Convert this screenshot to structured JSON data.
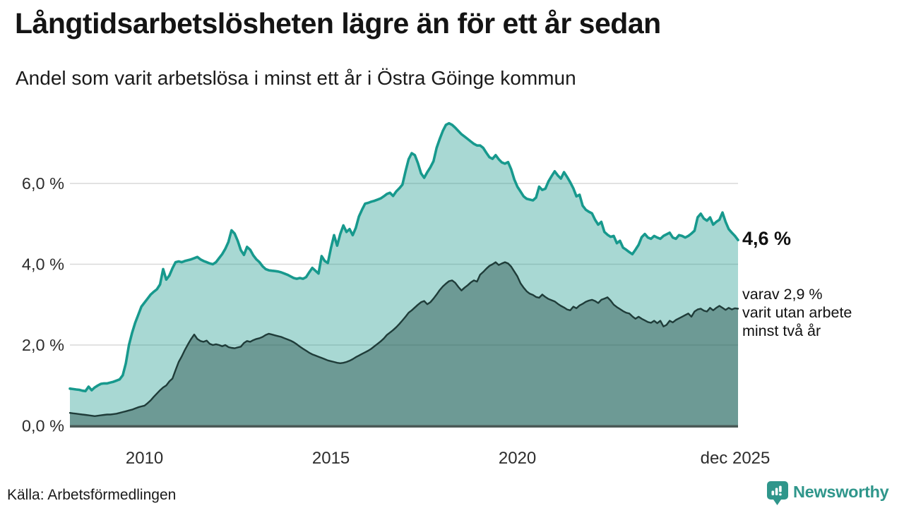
{
  "header": {
    "title": "Långtidsarbetslösheten lägre än för ett år sedan",
    "subtitle": "Andel som varit arbetslösa i minst ett år i Östra Göinge kommun"
  },
  "annotations": {
    "total": "4,6 %",
    "secondary": "varav 2,9 %\nvarit utan arbete\nminst två år"
  },
  "footer": {
    "source": "Källa: Arbetsförmedlingen",
    "logo_text": "Newsworthy"
  },
  "colors": {
    "accent_teal": "#17998d",
    "dark_line": "#1f3c39",
    "light_fill": "rgba(25,153,140,0.38)",
    "dark_fill": "rgba(38,80,74,0.45)",
    "grid": "#d9d9d9",
    "axis": "#4b5a57",
    "tick_text": "#2d2d2d",
    "logo_teal": "#2f968b"
  },
  "chart_data": {
    "type": "area",
    "title": "Långtidsarbetslösheten lägre än för ett år sedan",
    "xlabel": "",
    "ylabel": "",
    "x_unit": "month",
    "x_range": [
      "2008-01",
      "2025-12"
    ],
    "ylim": [
      0,
      7.8
    ],
    "grid": "horizontal",
    "legend_position": "right-annotations",
    "y_ticks": [
      {
        "value": 0,
        "label": "0,0 %",
        "gridline": false
      },
      {
        "value": 2,
        "label": "2,0 %",
        "gridline": true
      },
      {
        "value": 4,
        "label": "4,0 %",
        "gridline": true
      },
      {
        "value": 6,
        "label": "6,0 %",
        "gridline": true
      }
    ],
    "x_ticks": [
      {
        "index": 24,
        "label": "2010"
      },
      {
        "index": 84,
        "label": "2015"
      },
      {
        "index": 144,
        "label": "2020"
      },
      {
        "index": 215,
        "label": "dec 2025"
      }
    ],
    "series": [
      {
        "name": "Andel arbetslösa minst ett år",
        "end_label": "4,6 %",
        "end_value": 4.6,
        "line_color": "#17998d",
        "fill_color": "rgba(25,153,140,0.38)",
        "line_width": 3.6,
        "values": [
          0.92,
          0.91,
          0.9,
          0.89,
          0.87,
          0.86,
          0.97,
          0.88,
          0.95,
          1.0,
          1.04,
          1.05,
          1.05,
          1.07,
          1.09,
          1.12,
          1.15,
          1.25,
          1.55,
          2.0,
          2.3,
          2.55,
          2.75,
          2.95,
          3.05,
          3.15,
          3.25,
          3.32,
          3.38,
          3.5,
          3.88,
          3.62,
          3.72,
          3.9,
          4.05,
          4.07,
          4.05,
          4.08,
          4.1,
          4.12,
          4.15,
          4.18,
          4.12,
          4.08,
          4.05,
          4.02,
          4.0,
          4.05,
          4.15,
          4.25,
          4.38,
          4.55,
          4.84,
          4.76,
          4.58,
          4.35,
          4.23,
          4.43,
          4.36,
          4.22,
          4.12,
          4.05,
          3.95,
          3.88,
          3.85,
          3.84,
          3.83,
          3.82,
          3.8,
          3.77,
          3.74,
          3.7,
          3.66,
          3.64,
          3.66,
          3.64,
          3.68,
          3.8,
          3.91,
          3.84,
          3.77,
          4.2,
          4.08,
          4.03,
          4.4,
          4.72,
          4.46,
          4.75,
          4.96,
          4.8,
          4.87,
          4.72,
          4.9,
          5.18,
          5.35,
          5.5,
          5.52,
          5.55,
          5.57,
          5.6,
          5.63,
          5.68,
          5.74,
          5.77,
          5.69,
          5.8,
          5.88,
          5.97,
          6.3,
          6.6,
          6.75,
          6.7,
          6.5,
          6.25,
          6.14,
          6.28,
          6.4,
          6.55,
          6.88,
          7.1,
          7.3,
          7.45,
          7.49,
          7.45,
          7.38,
          7.3,
          7.22,
          7.16,
          7.1,
          7.04,
          6.98,
          6.94,
          6.94,
          6.88,
          6.76,
          6.65,
          6.61,
          6.7,
          6.6,
          6.52,
          6.49,
          6.53,
          6.35,
          6.1,
          5.92,
          5.8,
          5.68,
          5.62,
          5.6,
          5.58,
          5.65,
          5.92,
          5.84,
          5.87,
          6.05,
          6.18,
          6.3,
          6.2,
          6.12,
          6.28,
          6.16,
          6.03,
          5.88,
          5.68,
          5.72,
          5.45,
          5.35,
          5.3,
          5.26,
          5.1,
          4.98,
          5.05,
          4.8,
          4.73,
          4.68,
          4.7,
          4.52,
          4.58,
          4.41,
          4.36,
          4.3,
          4.25,
          4.36,
          4.48,
          4.67,
          4.75,
          4.66,
          4.63,
          4.7,
          4.66,
          4.63,
          4.7,
          4.74,
          4.78,
          4.66,
          4.63,
          4.72,
          4.7,
          4.66,
          4.7,
          4.76,
          4.83,
          5.16,
          5.25,
          5.13,
          5.08,
          5.16,
          4.98,
          5.05,
          5.1,
          5.28,
          5.05,
          4.87,
          4.78,
          4.7,
          4.6
        ]
      },
      {
        "name": "varav utan arbete minst två år",
        "end_label": "2,9 %",
        "end_value": 2.9,
        "line_color": "#1f3c39",
        "fill_color": "rgba(38,80,74,0.45)",
        "line_width": 2.4,
        "values": [
          0.32,
          0.31,
          0.3,
          0.29,
          0.28,
          0.27,
          0.26,
          0.25,
          0.24,
          0.25,
          0.26,
          0.27,
          0.28,
          0.28,
          0.29,
          0.3,
          0.32,
          0.34,
          0.36,
          0.38,
          0.4,
          0.43,
          0.46,
          0.48,
          0.5,
          0.56,
          0.63,
          0.72,
          0.8,
          0.88,
          0.95,
          1.0,
          1.1,
          1.17,
          1.38,
          1.58,
          1.72,
          1.88,
          2.02,
          2.15,
          2.26,
          2.15,
          2.1,
          2.08,
          2.11,
          2.03,
          2.0,
          2.02,
          2.0,
          1.97,
          2.0,
          1.95,
          1.93,
          1.92,
          1.94,
          1.96,
          2.05,
          2.1,
          2.08,
          2.12,
          2.15,
          2.17,
          2.2,
          2.25,
          2.28,
          2.26,
          2.24,
          2.22,
          2.2,
          2.17,
          2.14,
          2.11,
          2.07,
          2.02,
          1.96,
          1.91,
          1.86,
          1.81,
          1.77,
          1.74,
          1.71,
          1.68,
          1.65,
          1.62,
          1.6,
          1.58,
          1.56,
          1.55,
          1.56,
          1.58,
          1.61,
          1.65,
          1.7,
          1.74,
          1.78,
          1.82,
          1.86,
          1.91,
          1.97,
          2.03,
          2.09,
          2.16,
          2.25,
          2.31,
          2.37,
          2.44,
          2.52,
          2.61,
          2.7,
          2.8,
          2.86,
          2.93,
          3.0,
          3.06,
          3.09,
          3.01,
          3.06,
          3.15,
          3.25,
          3.36,
          3.45,
          3.52,
          3.58,
          3.6,
          3.54,
          3.44,
          3.35,
          3.42,
          3.48,
          3.55,
          3.6,
          3.57,
          3.74,
          3.81,
          3.89,
          3.96,
          4.0,
          4.05,
          3.98,
          4.02,
          4.05,
          4.02,
          3.94,
          3.82,
          3.7,
          3.53,
          3.42,
          3.33,
          3.27,
          3.24,
          3.19,
          3.17,
          3.25,
          3.19,
          3.14,
          3.11,
          3.08,
          3.02,
          2.97,
          2.93,
          2.88,
          2.86,
          2.95,
          2.91,
          2.98,
          3.02,
          3.07,
          3.1,
          3.12,
          3.09,
          3.04,
          3.12,
          3.15,
          3.18,
          3.1,
          3.0,
          2.94,
          2.89,
          2.84,
          2.8,
          2.78,
          2.71,
          2.65,
          2.7,
          2.65,
          2.61,
          2.57,
          2.55,
          2.6,
          2.54,
          2.6,
          2.46,
          2.5,
          2.6,
          2.56,
          2.62,
          2.66,
          2.7,
          2.74,
          2.78,
          2.7,
          2.83,
          2.88,
          2.9,
          2.85,
          2.83,
          2.92,
          2.86,
          2.92,
          2.97,
          2.92,
          2.87,
          2.92,
          2.88,
          2.91,
          2.9
        ]
      }
    ]
  }
}
